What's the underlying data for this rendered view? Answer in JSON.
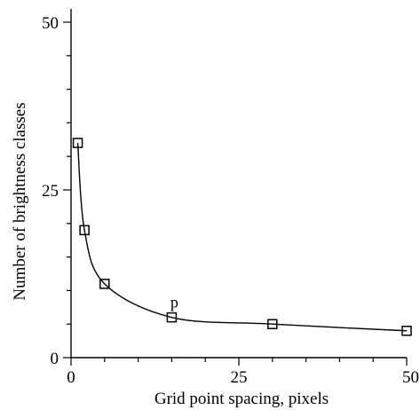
{
  "chart_data": {
    "type": "scatter",
    "title": "",
    "xlabel": "Grid point spacing, pixels",
    "ylabel": "Number of brightness classes",
    "xlim": [
      0,
      50
    ],
    "ylim": [
      0,
      50
    ],
    "xticks": [
      0,
      25,
      50
    ],
    "yticks": [
      0,
      25,
      50
    ],
    "x_minor_step": 5,
    "y_minor_step": 5,
    "grid": false,
    "legend": "none",
    "marker": "open-square",
    "fitted_curve": true,
    "series": [
      {
        "x": [
          1,
          2,
          5,
          15,
          30,
          50
        ],
        "y": [
          32,
          19,
          11,
          6,
          5,
          4
        ]
      }
    ],
    "annotations": [
      {
        "text": "p",
        "x": 15,
        "y": 6
      }
    ],
    "colors": {
      "axis": "#000000",
      "marker": "#000000",
      "curve": "#000000"
    }
  }
}
